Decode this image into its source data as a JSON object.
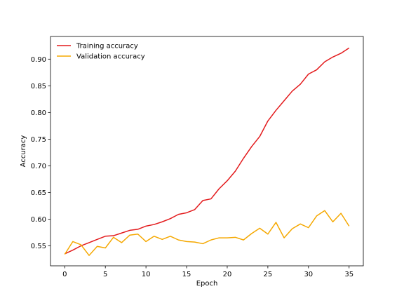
{
  "chart_data": {
    "type": "line",
    "title": "",
    "xlabel": "Epoch",
    "ylabel": "Accuracy",
    "xlim": [
      -1.75,
      36.75
    ],
    "ylim": [
      0.5125,
      0.9425
    ],
    "xticks": [
      0,
      5,
      10,
      15,
      20,
      25,
      30,
      35
    ],
    "yticks": [
      0.55,
      0.6,
      0.65,
      0.7,
      0.75,
      0.8,
      0.85,
      0.9
    ],
    "ytick_labels": [
      "0.55",
      "0.60",
      "0.65",
      "0.70",
      "0.75",
      "0.80",
      "0.85",
      "0.90"
    ],
    "grid": false,
    "legend_position": "top-left",
    "x": [
      0,
      1,
      2,
      3,
      4,
      5,
      6,
      7,
      8,
      9,
      10,
      11,
      12,
      13,
      14,
      15,
      16,
      17,
      18,
      19,
      20,
      21,
      22,
      23,
      24,
      25,
      26,
      27,
      28,
      29,
      30,
      31,
      32,
      33,
      34,
      35
    ],
    "series": [
      {
        "name": "Training accuracy",
        "color": "#e31a1c",
        "values": [
          0.535,
          0.542,
          0.55,
          0.556,
          0.562,
          0.568,
          0.569,
          0.574,
          0.579,
          0.581,
          0.587,
          0.59,
          0.595,
          0.601,
          0.609,
          0.612,
          0.618,
          0.635,
          0.638,
          0.657,
          0.672,
          0.69,
          0.714,
          0.736,
          0.755,
          0.784,
          0.804,
          0.822,
          0.84,
          0.853,
          0.872,
          0.88,
          0.895,
          0.904,
          0.911,
          0.921
        ]
      },
      {
        "name": "Validation accuracy",
        "color": "#f5a800",
        "values": [
          0.534,
          0.558,
          0.552,
          0.532,
          0.549,
          0.546,
          0.566,
          0.556,
          0.57,
          0.572,
          0.558,
          0.568,
          0.562,
          0.568,
          0.561,
          0.558,
          0.557,
          0.554,
          0.561,
          0.565,
          0.565,
          0.566,
          0.561,
          0.573,
          0.583,
          0.572,
          0.594,
          0.565,
          0.582,
          0.591,
          0.584,
          0.606,
          0.616,
          0.595,
          0.611,
          0.587
        ]
      }
    ]
  }
}
